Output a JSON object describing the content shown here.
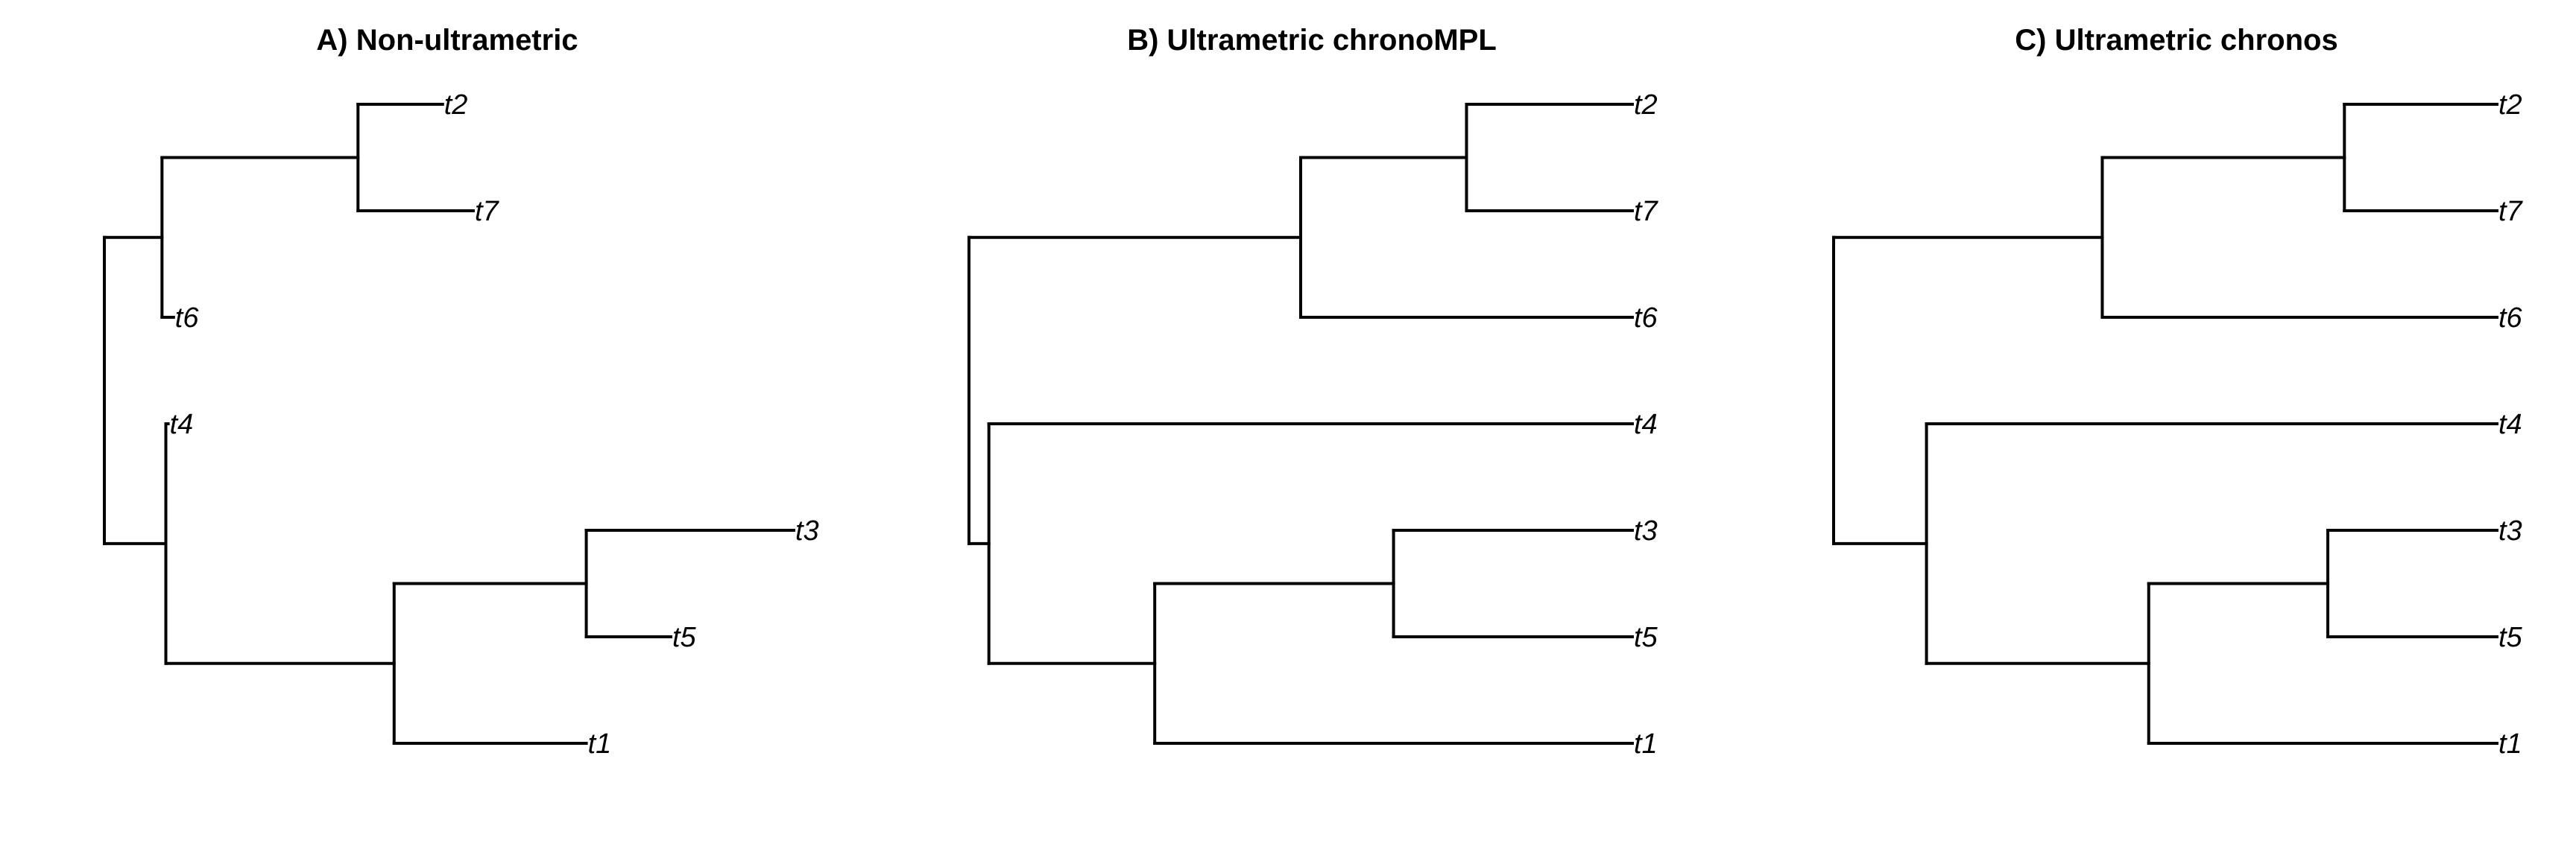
{
  "figure": {
    "panels": [
      {
        "id": "panel-a",
        "title": "A) Non-ultrametric",
        "tree": {
          "children": [
            {
              "branch_length": 0.75,
              "children": [
                {
                  "branch_length": 2.55,
                  "children": [
                    {
                      "label": "t2",
                      "branch_length": 1.1
                    },
                    {
                      "label": "t7",
                      "branch_length": 1.5
                    }
                  ]
                },
                {
                  "label": "t6",
                  "branch_length": 0.15
                }
              ]
            },
            {
              "branch_length": 0.8,
              "children": [
                {
                  "label": "t4",
                  "branch_length": 0.03
                },
                {
                  "branch_length": 2.97,
                  "children": [
                    {
                      "branch_length": 2.5,
                      "children": [
                        {
                          "label": "t3",
                          "branch_length": 2.7
                        },
                        {
                          "label": "t5",
                          "branch_length": 1.1
                        }
                      ]
                    },
                    {
                      "label": "t1",
                      "branch_length": 2.5
                    }
                  ]
                }
              ]
            }
          ]
        }
      },
      {
        "id": "panel-b",
        "title": "B) Ultrametric chronoMPL",
        "tree": {
          "children": [
            {
              "branch_length": 0.5,
              "children": [
                {
                  "branch_length": 0.25,
                  "children": [
                    {
                      "label": "t2",
                      "branch_length": 0.25
                    },
                    {
                      "label": "t7",
                      "branch_length": 0.25
                    }
                  ]
                },
                {
                  "label": "t6",
                  "branch_length": 0.5
                }
              ]
            },
            {
              "branch_length": 0.03,
              "children": [
                {
                  "label": "t4",
                  "branch_length": 0.97
                },
                {
                  "branch_length": 0.25,
                  "children": [
                    {
                      "branch_length": 0.36,
                      "children": [
                        {
                          "label": "t3",
                          "branch_length": 0.36
                        },
                        {
                          "label": "t5",
                          "branch_length": 0.36
                        }
                      ]
                    },
                    {
                      "label": "t1",
                      "branch_length": 0.72
                    }
                  ]
                }
              ]
            }
          ]
        }
      },
      {
        "id": "panel-c",
        "title": "C) Ultrametric chronos",
        "tree": {
          "children": [
            {
              "branch_length": 0.405,
              "children": [
                {
                  "branch_length": 0.365,
                  "children": [
                    {
                      "label": "t2",
                      "branch_length": 0.23
                    },
                    {
                      "label": "t7",
                      "branch_length": 0.23
                    }
                  ]
                },
                {
                  "label": "t6",
                  "branch_length": 0.595
                }
              ]
            },
            {
              "branch_length": 0.14,
              "children": [
                {
                  "label": "t4",
                  "branch_length": 0.86
                },
                {
                  "branch_length": 0.335,
                  "children": [
                    {
                      "branch_length": 0.27,
                      "children": [
                        {
                          "label": "t3",
                          "branch_length": 0.255
                        },
                        {
                          "label": "t5",
                          "branch_length": 0.255
                        }
                      ]
                    },
                    {
                      "label": "t1",
                      "branch_length": 0.525
                    }
                  ]
                }
              ]
            }
          ]
        }
      }
    ]
  }
}
